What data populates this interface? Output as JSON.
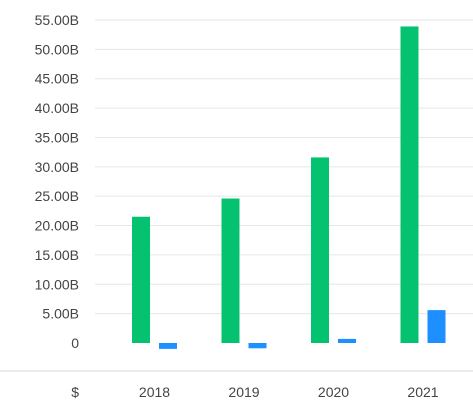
{
  "chart_data": {
    "type": "bar",
    "currency_label": "$",
    "categories": [
      "2018",
      "2019",
      "2020",
      "2021"
    ],
    "series": [
      {
        "color": "#05c271",
        "values": [
          21.5,
          24.6,
          31.6,
          53.9
        ]
      },
      {
        "color": "#1e8fff",
        "values": [
          -1.0,
          -0.9,
          0.7,
          5.6
        ]
      }
    ],
    "y_ticks": [
      0,
      5,
      10,
      15,
      20,
      25,
      30,
      35,
      40,
      45,
      50,
      55
    ],
    "y_tick_labels": [
      "0",
      "5.00B",
      "10.00B",
      "15.00B",
      "20.00B",
      "25.00B",
      "30.00B",
      "35.00B",
      "40.00B",
      "45.00B",
      "50.00B",
      "55.00B"
    ],
    "ylim": [
      -1.5,
      55
    ],
    "grid": true,
    "colors": {
      "grid": "#e6e6e6",
      "baseline": "#d9d9d9",
      "text": "#444444"
    }
  }
}
